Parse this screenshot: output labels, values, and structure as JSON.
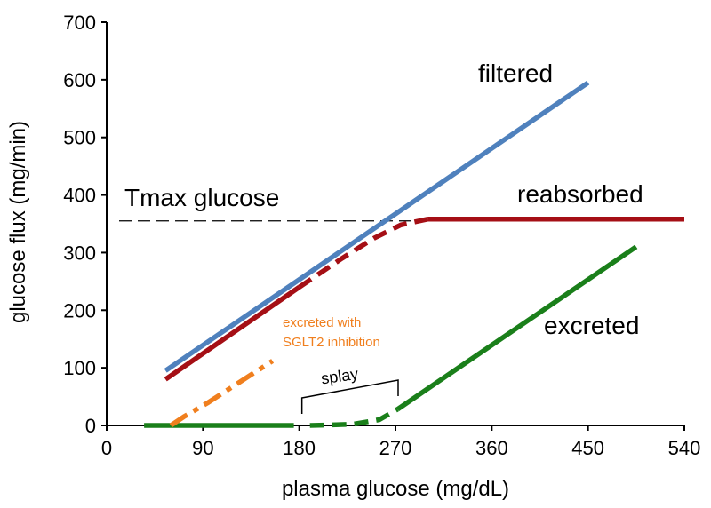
{
  "chart_data": {
    "type": "line",
    "title": "",
    "xlabel": "plasma glucose (mg/dL)",
    "ylabel": "glucose flux (mg/min)",
    "xlim": [
      0,
      540
    ],
    "ylim": [
      0,
      700
    ],
    "xticks": [
      0,
      90,
      180,
      270,
      360,
      450,
      540
    ],
    "yticks": [
      0,
      100,
      200,
      300,
      400,
      500,
      600,
      700
    ],
    "tmax": {
      "label": "Tmax glucose",
      "value": 355
    },
    "series": [
      {
        "name": "filtered",
        "color": "#4f81bd",
        "style": "solid",
        "points": [
          [
            55,
            95
          ],
          [
            450,
            595
          ]
        ]
      },
      {
        "name": "reabsorbed",
        "color": "#a50f15",
        "style": "solid",
        "points": [
          [
            55,
            80
          ],
          [
            180,
            240
          ]
        ]
      },
      {
        "name": "reabsorbed",
        "color": "#a50f15",
        "style": "dashed",
        "points": [
          [
            180,
            240
          ],
          [
            220,
            290
          ],
          [
            250,
            325
          ],
          [
            275,
            348
          ],
          [
            300,
            358
          ]
        ]
      },
      {
        "name": "reabsorbed",
        "color": "#a50f15",
        "style": "solid",
        "points": [
          [
            300,
            358
          ],
          [
            540,
            358
          ]
        ]
      },
      {
        "name": "excreted",
        "color": "#1a7f1a",
        "style": "solid",
        "points": [
          [
            35,
            0
          ],
          [
            175,
            0
          ]
        ]
      },
      {
        "name": "excreted",
        "color": "#1a7f1a",
        "style": "dashed",
        "points": [
          [
            190,
            0
          ],
          [
            230,
            2
          ],
          [
            255,
            10
          ],
          [
            272,
            28
          ]
        ]
      },
      {
        "name": "excreted",
        "color": "#1a7f1a",
        "style": "solid",
        "points": [
          [
            272,
            28
          ],
          [
            495,
            310
          ]
        ]
      },
      {
        "name": "excreted with SGLT2 inhibition",
        "color": "#f07f1e",
        "style": "dashdot",
        "points": [
          [
            60,
            0
          ],
          [
            72,
            15
          ],
          [
            95,
            40
          ],
          [
            120,
            70
          ],
          [
            155,
            112
          ]
        ]
      }
    ],
    "annotations": {
      "filtered": "filtered",
      "reabsorbed": "reabsorbed",
      "excreted": "excreted",
      "sglt2_line1": "excreted with",
      "sglt2_line2": "SGLT2 inhibition",
      "splay": "splay"
    },
    "splay_range": [
      180,
      270
    ]
  }
}
